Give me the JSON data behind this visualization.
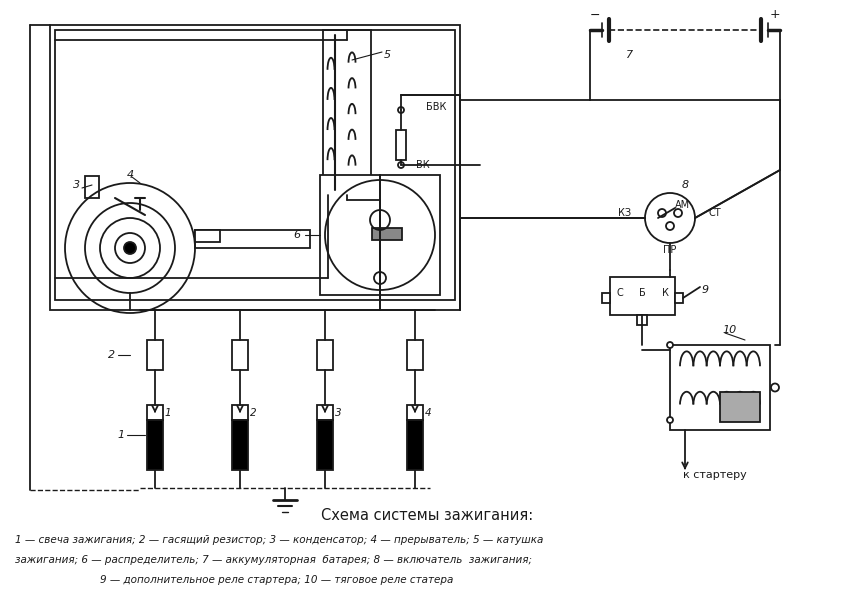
{
  "title": "Схема системы зажигания:",
  "caption_line1": "1 — свеча зажигания; 2 — гасящий резистор; 3 — конденсатор; 4 — прерыватель; 5 — катушка",
  "caption_line2": "зажигания; 6 — распределитель; 7 — аккумуляторная  батарея; 8 — включатель  зажигания;",
  "caption_line3": "9 — дополнительное реле стартера; 10 — тяговое реле статера",
  "bg_color": "#ffffff",
  "line_color": "#1a1a1a",
  "label_BVK": "БВК",
  "label_VK": "ВК",
  "label_KZ": "КЗ",
  "label_AM": "АМ",
  "label_ST": "СТ",
  "label_PR": "ПР",
  "label_C": "С",
  "label_B": "Б",
  "label_K": "К",
  "label_to_starter": "к стартеру",
  "minus_sign": "−",
  "plus_sign": "+"
}
